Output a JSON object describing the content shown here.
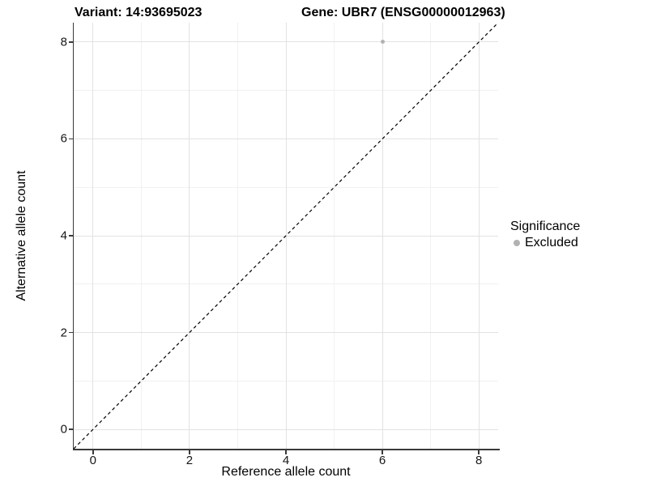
{
  "header": {
    "variant_title": "Variant: 14:93695023",
    "gene_title": "Gene: UBR7 (ENSG00000012963)"
  },
  "legend": {
    "title": "Significance",
    "items": [
      {
        "label": "Excluded",
        "color": "#b2b2b2",
        "marker": "circle-icon"
      }
    ]
  },
  "chart_data": {
    "type": "scatter",
    "title": "Variant: 14:93695023   Gene: UBR7 (ENSG00000012963)",
    "xlabel": "Reference allele count",
    "ylabel": "Alternative allele count",
    "xlim": [
      -0.4,
      8.4
    ],
    "ylim": [
      -0.4,
      8.4
    ],
    "x_ticks": [
      0,
      2,
      4,
      6,
      8
    ],
    "y_ticks": [
      0,
      2,
      4,
      6,
      8
    ],
    "x_minor_ticks": [
      1,
      3,
      5,
      7
    ],
    "y_minor_ticks": [
      1,
      3,
      5,
      7
    ],
    "grid": "major+minor",
    "legend_position": "right",
    "series": [
      {
        "name": "Excluded",
        "color": "#b2b2b2",
        "point_size": 5,
        "points": [
          {
            "x": 6,
            "y": 8
          }
        ]
      }
    ],
    "reference_line": {
      "type": "identity y=x",
      "style": "dashed",
      "color": "#000000"
    }
  },
  "colors": {
    "background": "#ffffff",
    "grid_major": "#e2e2e2",
    "grid_minor": "#f1f1f1",
    "axis": "#3a3a3a",
    "text": "#000000",
    "point": "#b2b2b2"
  }
}
